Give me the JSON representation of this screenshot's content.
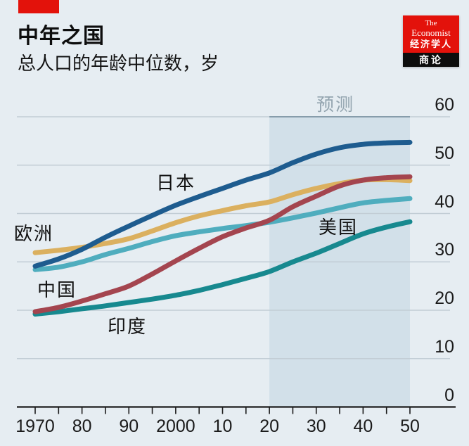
{
  "header": {
    "title": "中年之国",
    "subtitle": "总人口的年龄中位数，岁",
    "tag_color": "#e3120b"
  },
  "logo": {
    "line1": "The",
    "line2": "Economist",
    "line3": "经济学人",
    "line4": "商论",
    "bg": "#e3120b",
    "band_bg": "#0d0d0d"
  },
  "chart_data": {
    "type": "line",
    "title": "中年之国",
    "subtitle": "总人口的年龄中位数，岁",
    "xlabel": "",
    "ylabel": "岁",
    "xlim": [
      1970,
      2050
    ],
    "ylim": [
      0,
      60
    ],
    "grid": true,
    "forecast_label": "预测",
    "forecast_range": [
      2020,
      2050
    ],
    "x": [
      1970,
      1975,
      1980,
      1985,
      1990,
      1995,
      2000,
      2005,
      2010,
      2015,
      2020,
      2025,
      2030,
      2035,
      2040,
      2045,
      2050
    ],
    "x_tick_years": [
      1970,
      1975,
      1980,
      1985,
      1990,
      1995,
      2000,
      2005,
      2010,
      2015,
      2020,
      2025,
      2030,
      2035,
      2040,
      2045,
      2050
    ],
    "x_axis_labels": [
      {
        "year": 1970,
        "label": "1970"
      },
      {
        "year": 1980,
        "label": "80"
      },
      {
        "year": 1990,
        "label": "90"
      },
      {
        "year": 2000,
        "label": "2000"
      },
      {
        "year": 2010,
        "label": "10"
      },
      {
        "year": 2020,
        "label": "20"
      },
      {
        "year": 2030,
        "label": "30"
      },
      {
        "year": 2040,
        "label": "40"
      },
      {
        "year": 2050,
        "label": "50"
      }
    ],
    "y_ticks": [
      0,
      10,
      20,
      30,
      40,
      50,
      60
    ],
    "series": [
      {
        "name": "japan",
        "label": "日本",
        "color": "#1e5c8f",
        "values": [
          29.1,
          30.6,
          32.6,
          35.1,
          37.4,
          39.6,
          41.7,
          43.5,
          45.2,
          46.9,
          48.4,
          50.5,
          52.3,
          53.6,
          54.3,
          54.6,
          54.7
        ]
      },
      {
        "name": "europe",
        "label": "欧洲",
        "color": "#dbb05f",
        "values": [
          31.9,
          32.4,
          33.0,
          33.8,
          34.8,
          36.4,
          38.1,
          39.5,
          40.6,
          41.6,
          42.4,
          43.9,
          45.2,
          46.2,
          46.9,
          47.0,
          46.8
        ]
      },
      {
        "name": "us",
        "label": "美国",
        "color": "#4fadbe",
        "values": [
          28.4,
          28.9,
          30.0,
          31.5,
          32.8,
          34.2,
          35.4,
          36.2,
          36.9,
          37.5,
          38.2,
          39.1,
          40.1,
          41.2,
          42.2,
          42.7,
          43.1
        ]
      },
      {
        "name": "china",
        "label": "中国",
        "color": "#a4454f",
        "values": [
          19.7,
          20.6,
          21.9,
          23.4,
          25.0,
          27.5,
          30.2,
          32.8,
          35.2,
          37.0,
          38.6,
          41.4,
          43.6,
          45.7,
          46.9,
          47.4,
          47.6
        ]
      },
      {
        "name": "india",
        "label": "印度",
        "color": "#17898f",
        "values": [
          19.2,
          19.7,
          20.3,
          20.9,
          21.6,
          22.3,
          23.1,
          24.1,
          25.3,
          26.6,
          28.0,
          30.0,
          31.8,
          33.8,
          35.8,
          37.2,
          38.3
        ]
      }
    ],
    "colors": {
      "background": "#e6edf2",
      "forecast_band": "#d2e0e9",
      "grid": "#c2cdd5",
      "grid_top_forecast": "#879dab",
      "axis": "#1a1a1a",
      "forecast_label": "#93a4af"
    }
  }
}
